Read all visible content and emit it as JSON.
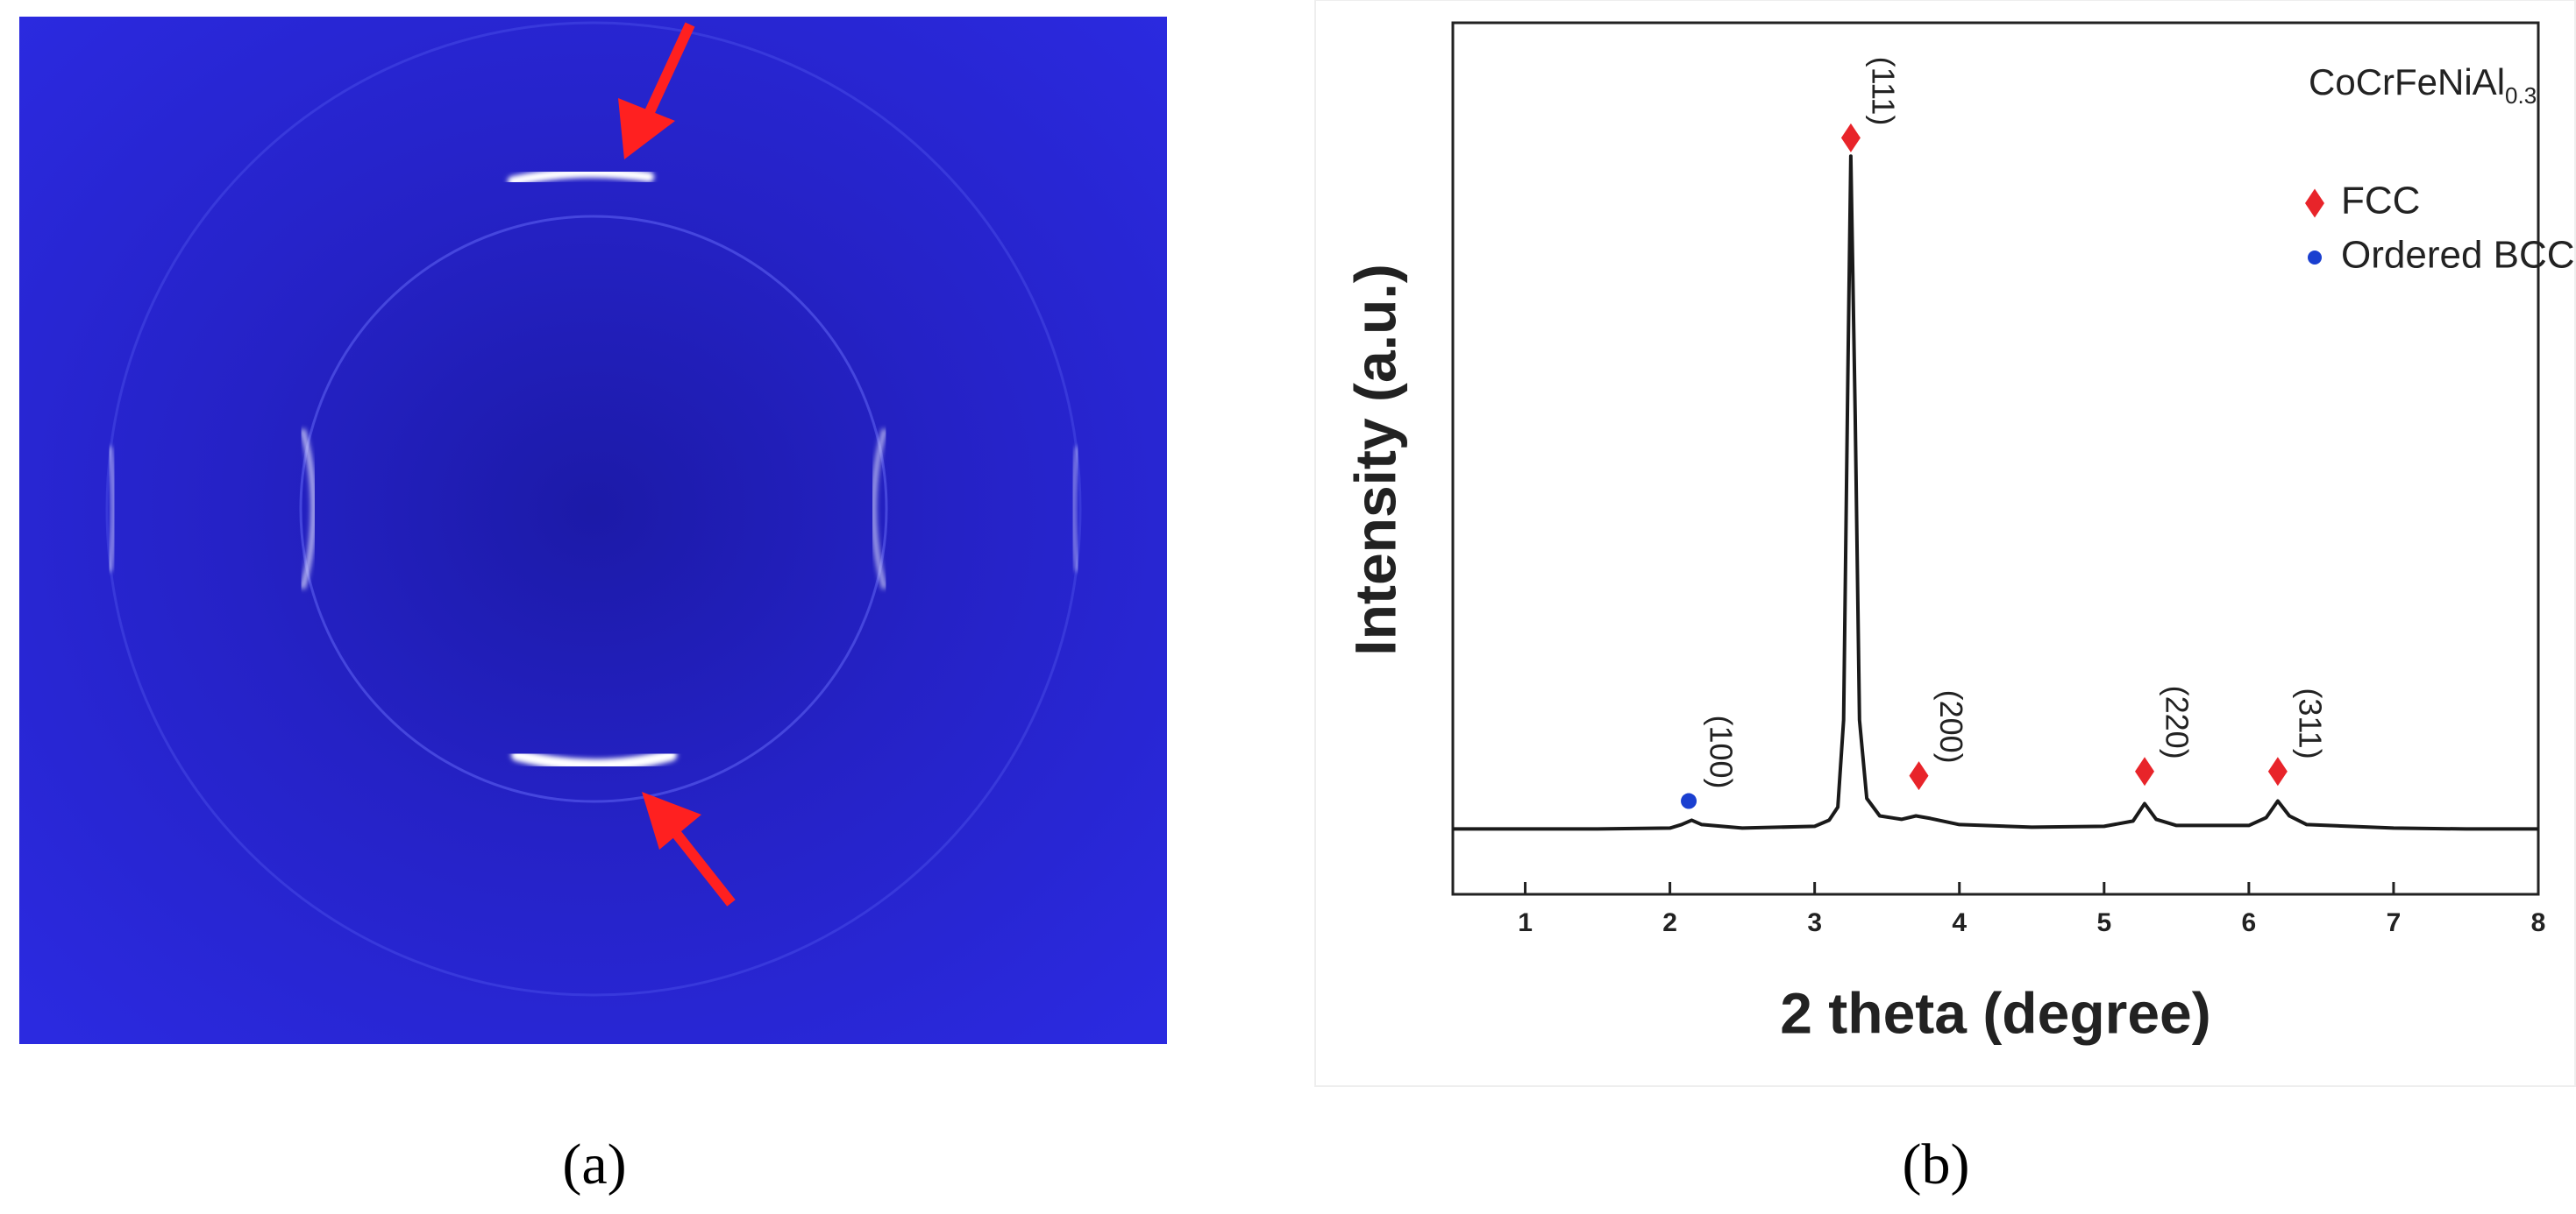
{
  "captions": [
    "(a)",
    "(b)"
  ],
  "chart_data": {
    "type": "line",
    "xlabel": "2 theta (degree)",
    "ylabel": "Intensity (a.u.)",
    "legend_title": {
      "text": "CoCrFeNiAl",
      "subscript": "0.3"
    },
    "legend": "top-right",
    "xlim": [
      0.5,
      8
    ],
    "xticks": [
      1,
      2,
      3,
      4,
      5,
      6,
      7,
      8
    ],
    "ylim": [
      0,
      100
    ],
    "line": {
      "color": "#1a1a1a",
      "x": [
        0.5,
        1,
        1.5,
        2,
        2.08,
        2.15,
        2.22,
        2.5,
        3,
        3.1,
        3.16,
        3.2,
        3.23,
        3.25,
        3.28,
        3.31,
        3.36,
        3.45,
        3.6,
        3.7,
        3.8,
        4,
        4.5,
        5,
        5.2,
        5.28,
        5.36,
        5.5,
        6,
        6.12,
        6.2,
        6.28,
        6.4,
        7,
        7.5,
        8
      ],
      "values": [
        7.5,
        7.5,
        7.5,
        7.6,
        8,
        8.5,
        8,
        7.6,
        7.8,
        8.5,
        10,
        20,
        60,
        84.7,
        55,
        20,
        11,
        9,
        8.6,
        9,
        8.7,
        8,
        7.7,
        7.8,
        8.4,
        10.4,
        8.6,
        7.9,
        7.9,
        8.8,
        10.7,
        9,
        8,
        7.6,
        7.5,
        7.5
      ]
    },
    "series": [
      {
        "name": "FCC",
        "color": "#e8242a",
        "marker": "diamond",
        "x": [
          3.25,
          3.72,
          5.28,
          6.2
        ],
        "values": [
          86.8,
          13.6,
          14.1,
          14.1
        ],
        "labels": [
          "(111)",
          "(200)",
          "(220)",
          "(311)"
        ]
      },
      {
        "name": "Ordered BCC",
        "color": "#1a3fd0",
        "marker": "circle",
        "x": [
          2.13
        ],
        "values": [
          10.7
        ],
        "labels": [
          "(100)"
        ]
      }
    ]
  }
}
